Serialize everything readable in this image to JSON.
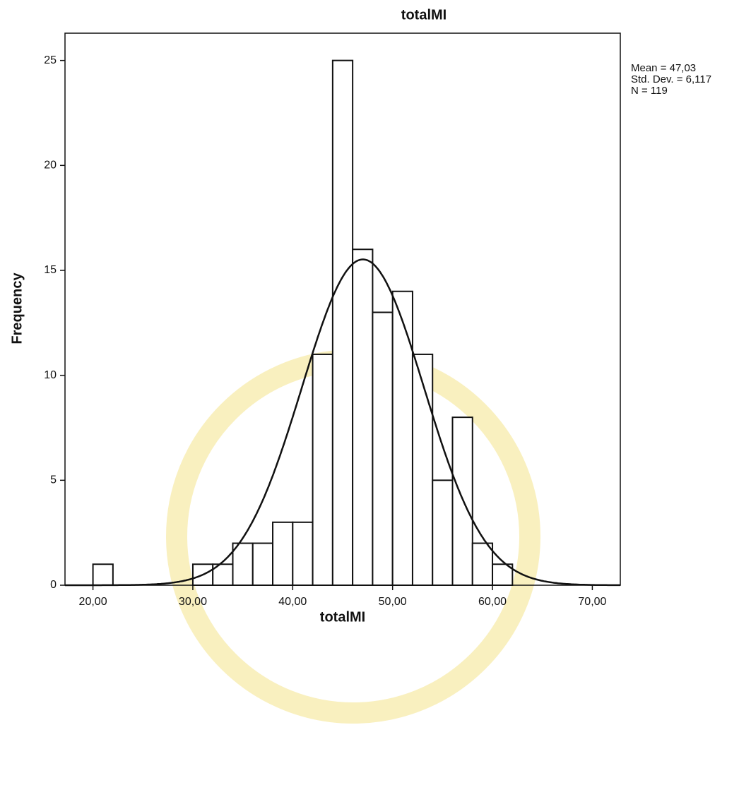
{
  "chart_data": {
    "type": "histogram",
    "title": "totalMI",
    "x_label": "totalMI",
    "y_label": "Frequency",
    "bins": [
      20,
      22,
      24,
      26,
      28,
      30,
      32,
      34,
      36,
      38,
      40,
      42,
      44,
      46,
      48,
      50,
      52,
      54,
      56,
      58,
      60,
      62
    ],
    "counts": [
      1,
      0,
      0,
      0,
      0,
      1,
      1,
      2,
      2,
      3,
      3,
      11,
      25,
      16,
      13,
      14,
      11,
      5,
      8,
      2,
      1
    ],
    "color": "#ffffff",
    "xlim": [
      17.2,
      72.8
    ],
    "ylim": [
      0,
      26.3
    ],
    "xticks": [
      {
        "value": 20,
        "label": "20,00"
      },
      {
        "value": 30,
        "label": "30,00"
      },
      {
        "value": 40,
        "label": "40,00"
      },
      {
        "value": 50,
        "label": "50,00"
      },
      {
        "value": 60,
        "label": "60,00"
      },
      {
        "value": 70,
        "label": "70,00"
      }
    ],
    "yticks": [
      0,
      5,
      10,
      15,
      20,
      25
    ],
    "stats": [
      {
        "value": 47.03,
        "label": "Mean = 47,03"
      },
      {
        "value": 6.117,
        "label": "Std. Dev. = 6,117"
      },
      {
        "value": 119,
        "label": "N = 119"
      }
    ]
  }
}
